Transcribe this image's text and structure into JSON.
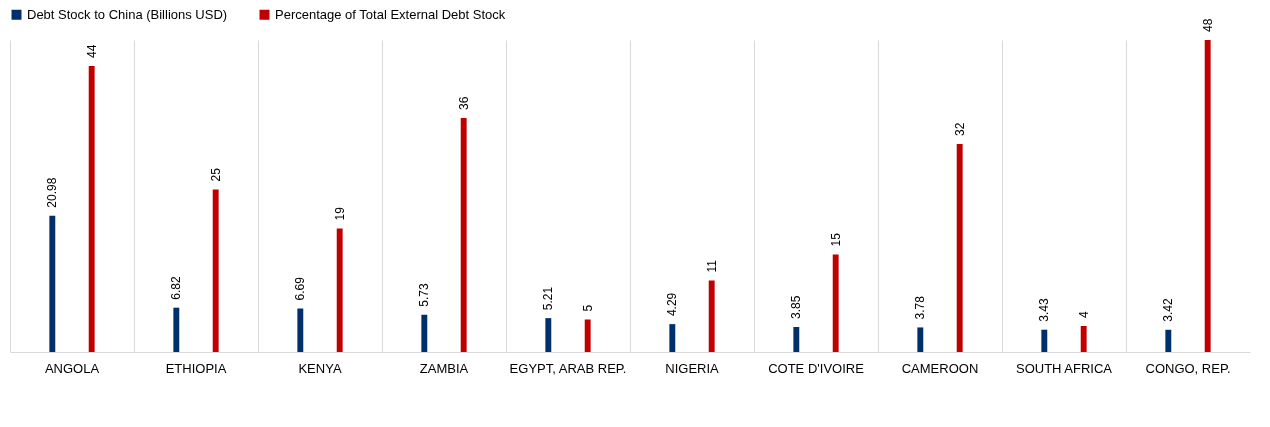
{
  "chart_data": {
    "type": "bar",
    "categories": [
      "ANGOLA",
      "ETHIOPIA",
      "KENYA",
      "ZAMBIA",
      "EGYPT, ARAB REP.",
      "NIGERIA",
      "COTE D'IVOIRE",
      "CAMEROON",
      "SOUTH AFRICA",
      "CONGO, REP."
    ],
    "series": [
      {
        "name": "Debt Stock to China (Billions USD)",
        "color": "#002f6c",
        "values": [
          20.98,
          6.82,
          6.69,
          5.73,
          5.21,
          4.29,
          3.85,
          3.78,
          3.43,
          3.42
        ]
      },
      {
        "name": "Percentage of Total External Debt Stock",
        "color": "#c00000",
        "values": [
          44,
          25,
          19,
          36,
          5,
          11,
          15,
          32,
          4,
          48
        ]
      }
    ],
    "data_labels": true,
    "grid": "x",
    "legend": "top"
  }
}
